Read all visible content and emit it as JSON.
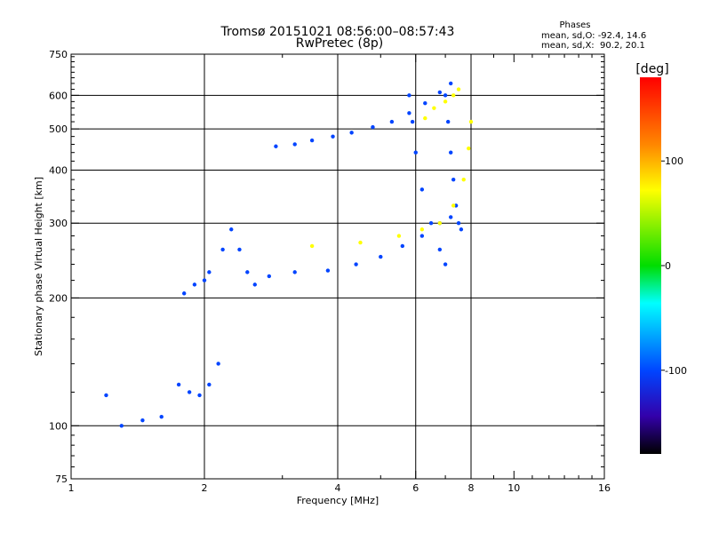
{
  "chart_data": {
    "type": "scatter",
    "title": "Tromsø 20151021 08:56:00–08:57:43",
    "subtitle": "RwPretec (8p)",
    "xlabel": "Frequency [MHz]",
    "ylabel": "Stationary phase Virtual Height [km]",
    "x_scale": "log",
    "y_scale": "log",
    "xlim": [
      1,
      16
    ],
    "ylim": [
      75,
      750
    ],
    "x_ticks": [
      1,
      2,
      4,
      6,
      8,
      10,
      16
    ],
    "y_ticks": [
      75,
      100,
      200,
      300,
      400,
      500,
      600,
      750
    ],
    "x_gridlines": [
      2,
      4,
      6,
      8
    ],
    "y_gridlines": [
      100,
      200,
      300,
      400,
      500,
      600
    ],
    "grid": true,
    "stats": {
      "heading": "Phases",
      "line_o": "mean, sd,O: -92.4, 14.6",
      "line_x": "mean, sd,X:  90.2, 20.1"
    },
    "colorbar": {
      "label": "[deg]",
      "range": [
        -180,
        180
      ],
      "ticks": [
        100,
        0,
        -100
      ],
      "colors": [
        "#ff0000",
        "#ff8800",
        "#ffff00",
        "#00dd00",
        "#00ffff",
        "#0044ff",
        "#3300aa",
        "#000000"
      ]
    },
    "traces": [
      {
        "name": "",
        "phase": -95,
        "x": [
          2.9,
          3.2,
          3.5,
          3.9,
          4.3,
          4.8,
          5.3,
          5.8,
          6.3,
          6.8,
          7.2
        ],
        "y": [
          455,
          460,
          470,
          480,
          490,
          505,
          520,
          545,
          575,
          610,
          640
        ]
      },
      {
        "name": "",
        "phase": -95,
        "x": [
          2.2,
          2.3,
          2.4,
          2.5,
          2.6,
          2.8,
          3.2,
          3.8,
          4.4,
          5.0,
          5.6,
          6.2,
          6.8,
          7.2
        ],
        "y": [
          260,
          290,
          260,
          230,
          215,
          225,
          230,
          232,
          240,
          250,
          265,
          280,
          300,
          310
        ]
      },
      {
        "name": "",
        "phase": -100,
        "x": [
          5.8,
          5.9,
          6.0,
          6.2,
          6.5,
          6.8,
          7.0
        ],
        "y": [
          600,
          520,
          440,
          360,
          300,
          260,
          240
        ]
      },
      {
        "name": "",
        "phase": -100,
        "x": [
          7.0,
          7.1,
          7.2,
          7.3,
          7.4,
          7.5,
          7.6
        ],
        "y": [
          600,
          520,
          440,
          380,
          330,
          300,
          290
        ]
      },
      {
        "name": "",
        "phase": 90,
        "x": [
          3.5,
          4.5,
          5.5,
          6.2,
          6.8,
          7.3,
          7.7,
          7.9,
          8.0
        ],
        "y": [
          265,
          270,
          280,
          290,
          300,
          330,
          380,
          450,
          520
        ]
      },
      {
        "name": "",
        "phase": 95,
        "x": [
          6.3,
          6.6,
          7.0,
          7.3,
          7.5
        ],
        "y": [
          530,
          560,
          580,
          600,
          620
        ]
      },
      {
        "name": "",
        "phase": -90,
        "x": [
          1.2,
          1.3,
          1.45,
          1.6,
          1.75,
          1.85,
          1.95,
          2.05,
          2.15
        ],
        "y": [
          118,
          100,
          103,
          105,
          125,
          120,
          118,
          125,
          140
        ]
      },
      {
        "name": "",
        "phase": -90,
        "x": [
          1.8,
          1.9,
          2.0,
          2.05
        ],
        "y": [
          205,
          215,
          220,
          230
        ]
      }
    ]
  }
}
